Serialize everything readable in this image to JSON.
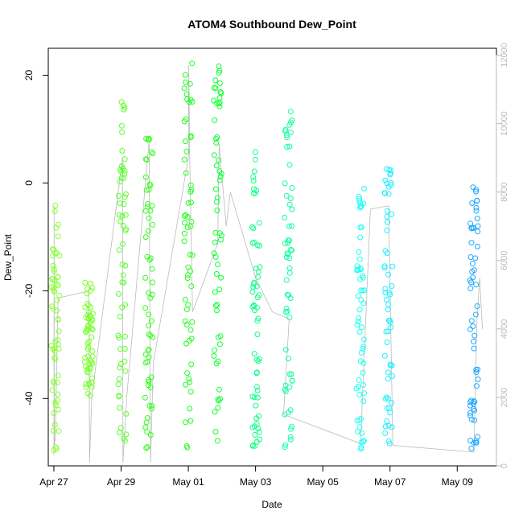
{
  "chart_data": {
    "type": "scatter",
    "title": "ATOM4 Southbound Dew_Point",
    "xlabel": "Date",
    "ylabel": "Dew_Point",
    "x_axis": {
      "type": "date",
      "range": [
        "2016-04-26T20:00",
        "2016-05-10T04:00"
      ],
      "ticks": [
        "2016-04-27",
        "2016-04-29",
        "2016-05-01",
        "2016-05-03",
        "2016-05-05",
        "2016-05-07",
        "2016-05-09"
      ],
      "tick_labels": [
        "Apr 27",
        "Apr 29",
        "May 01",
        "May 03",
        "May 05",
        "May 07",
        "May 09"
      ]
    },
    "y_axis": {
      "range": [
        -52.5,
        25
      ],
      "ticks": [
        -40,
        -20,
        0,
        20
      ],
      "tick_labels": [
        "-40",
        "-20",
        "0",
        "20"
      ]
    },
    "y2_axis": {
      "range": [
        0,
        12200
      ],
      "ticks": [
        0,
        2000,
        4000,
        6000,
        8000,
        10000,
        12000
      ],
      "tick_labels": [
        "0",
        "2000",
        "4000",
        "6000",
        "8000",
        "10000",
        "12000"
      ],
      "color": "#bbbbbb"
    },
    "grid": false,
    "legend": "none",
    "marker": "open-circle",
    "colormap_note": "points colored by time, green to blue",
    "colors": {
      "line": "#bbbbbb",
      "start": "#7fff2a",
      "end": "#1a8cff"
    },
    "point_clusters": [
      {
        "name": "Apr 27 AM",
        "x": "2016-04-27T01:00",
        "y_min": -50,
        "y_max": -4,
        "color": "#88ff33"
      },
      {
        "name": "Apr 28 AM",
        "x": "2016-04-28T01:00",
        "y_min": -40,
        "y_max": -18,
        "color": "#7aff2e"
      },
      {
        "name": "Apr 29 AM",
        "x": "2016-04-29T00:50",
        "y_min": -49.5,
        "y_max": 15.5,
        "color": "#5cff2a"
      },
      {
        "name": "Apr 29 PM",
        "x": "2016-04-29T20:00",
        "y_min": -50,
        "y_max": 10.5,
        "color": "#33ff1a"
      },
      {
        "name": "May 01 AM",
        "x": "2016-05-01T00:00",
        "y_min": -49.5,
        "y_max": 23,
        "color": "#22ff22"
      },
      {
        "name": "May 01 PM",
        "x": "2016-05-01T21:00",
        "y_min": -48,
        "y_max": 23,
        "color": "#11ff33"
      },
      {
        "name": "May 03 AM",
        "x": "2016-05-03T00:30",
        "y_min": -49.5,
        "y_max": 7,
        "color": "#10ff88"
      },
      {
        "name": "May 03 PM",
        "x": "2016-05-03T23:30",
        "y_min": -50,
        "y_max": 13.5,
        "color": "#11ffa0"
      },
      {
        "name": "May 06 AM",
        "x": "2016-05-06T03:00",
        "y_min": -49.5,
        "y_max": 0.5,
        "color": "#1ffff0"
      },
      {
        "name": "May 07 AM",
        "x": "2016-05-06T23:00",
        "y_min": -49.5,
        "y_max": 4.5,
        "color": "#22eeff"
      },
      {
        "name": "May 09 AM",
        "x": "2016-05-09T12:00",
        "y_min": -50,
        "y_max": 0,
        "color": "#1fa8ff"
      }
    ],
    "secondary_line_y2": [
      [
        "2016-04-27T00:00",
        300
      ],
      [
        "2016-04-27T00:10",
        7600
      ],
      [
        "2016-04-27T00:20",
        600
      ],
      [
        "2016-04-27T01:00",
        800
      ],
      [
        "2016-04-27T03:00",
        4900
      ],
      [
        "2016-04-28T00:00",
        5100
      ],
      [
        "2016-04-28T01:00",
        4950
      ],
      [
        "2016-04-28T01:30",
        100
      ],
      [
        "2016-04-28T03:00",
        2000
      ],
      [
        "2016-04-29T01:00",
        9000
      ],
      [
        "2016-04-29T01:20",
        100
      ],
      [
        "2016-04-29T04:00",
        2000
      ],
      [
        "2016-04-29T20:00",
        9500
      ],
      [
        "2016-04-29T21:00",
        100
      ],
      [
        "2016-04-29T23:00",
        3000
      ],
      [
        "2016-05-01T00:00",
        9000
      ],
      [
        "2016-05-01T00:20",
        11700
      ],
      [
        "2016-05-01T01:00",
        9000
      ],
      [
        "2016-05-01T03:00",
        4500
      ],
      [
        "2016-05-01T21:00",
        6500
      ],
      [
        "2016-05-01T22:00",
        9400
      ],
      [
        "2016-05-02T03:00",
        7000
      ],
      [
        "2016-05-02T06:00",
        8000
      ],
      [
        "2016-05-03T00:00",
        5500
      ],
      [
        "2016-05-03T12:00",
        4500
      ],
      [
        "2016-05-04T00:00",
        4300
      ],
      [
        "2016-05-03T20:00",
        1500
      ],
      [
        "2016-05-06T03:00",
        650
      ],
      [
        "2016-05-06T10:00",
        7500
      ],
      [
        "2016-05-06T23:00",
        7600
      ],
      [
        "2016-05-07T02:00",
        600
      ],
      [
        "2016-05-09T12:00",
        400
      ],
      [
        "2016-05-09T14:00",
        4200
      ],
      [
        "2016-05-09T16:00",
        5500
      ],
      [
        "2016-05-09T18:00",
        4000
      ]
    ]
  }
}
